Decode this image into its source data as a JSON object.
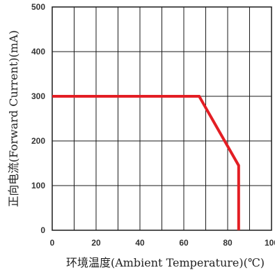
{
  "chart_data": {
    "type": "line",
    "xlabel": "环境温度(Ambient Temperature)(℃)",
    "ylabel": "正向电流(Forward Current)(mA)",
    "xlim": [
      0,
      100
    ],
    "ylim": [
      0,
      500
    ],
    "grid": true,
    "x_ticks": [
      "0",
      "20",
      "40",
      "60",
      "80",
      "100"
    ],
    "y_ticks": [
      "0",
      "100",
      "200",
      "300",
      "400",
      "500"
    ],
    "series": [
      {
        "x": [
          0,
          67,
          85,
          85
        ],
        "y": [
          300,
          300,
          145,
          0
        ],
        "color": "#e31e24"
      }
    ]
  }
}
